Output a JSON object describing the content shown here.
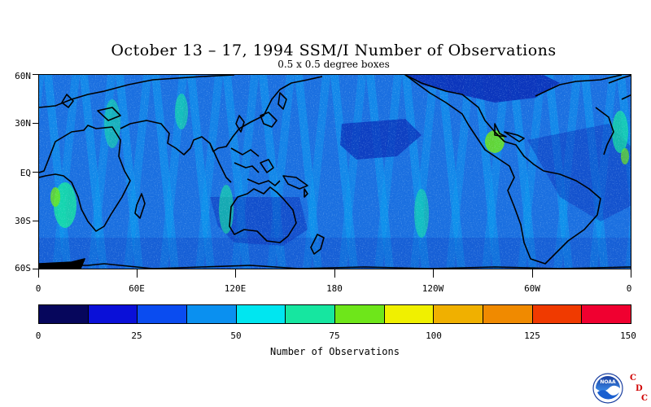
{
  "header": {
    "title": "October 13 – 17, 1994 SSM/I Number of Observations",
    "subtitle": "0.5 x 0.5 degree boxes"
  },
  "map": {
    "lat_axis": [
      "60N",
      "30N",
      "EQ",
      "30S",
      "60S"
    ],
    "lon_axis": [
      "0",
      "60E",
      "120E",
      "180",
      "120W",
      "60W",
      "0"
    ],
    "base_color": "#1a6fe0",
    "land_outline_color": "#000000"
  },
  "colorbar": {
    "colors": [
      "#06065c",
      "#0a10d8",
      "#0a4cf0",
      "#0a90f0",
      "#00e6f0",
      "#16e6a0",
      "#6ee61a",
      "#f0f000",
      "#f0b000",
      "#f08a00",
      "#f03a00",
      "#f00030"
    ],
    "tick_labels": [
      "0",
      "25",
      "50",
      "75",
      "100",
      "125",
      "150"
    ],
    "title": "Number of Observations"
  },
  "logo": {
    "agency_text": "NOAA",
    "letters": [
      "C",
      "D",
      "C"
    ]
  }
}
